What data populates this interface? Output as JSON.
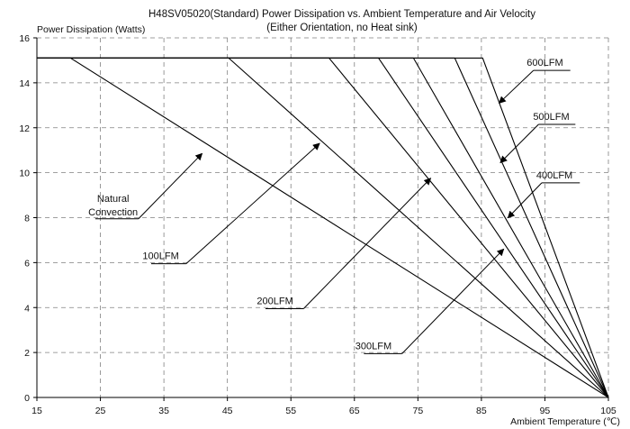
{
  "chart_data": {
    "type": "line",
    "title": "H48SV05020(Standard) Power Dissipation vs. Ambient Temperature and Air Velocity",
    "subtitle": "(Either Orientation, no Heat sink)",
    "ylabel": "Power Dissipation (Watts)",
    "xlabel": "Ambient Temperature (℃)",
    "xlim": [
      15,
      105
    ],
    "ylim": [
      0,
      16
    ],
    "xticks": [
      15,
      25,
      35,
      45,
      55,
      65,
      75,
      85,
      95,
      105
    ],
    "yticks": [
      0,
      2,
      4,
      6,
      8,
      10,
      12,
      14,
      16
    ],
    "grid": true,
    "series": [
      {
        "name": "Natural Convection",
        "x": [
          15,
          20.3,
          105
        ],
        "y": [
          15.1,
          15.1,
          0
        ]
      },
      {
        "name": "100LFM",
        "x": [
          15,
          45.2,
          105
        ],
        "y": [
          15.1,
          15.1,
          0
        ]
      },
      {
        "name": "200LFM",
        "x": [
          15,
          61.0,
          105
        ],
        "y": [
          15.1,
          15.1,
          0
        ]
      },
      {
        "name": "300LFM",
        "x": [
          15,
          68.8,
          105
        ],
        "y": [
          15.1,
          15.1,
          0
        ]
      },
      {
        "name": "400LFM",
        "x": [
          15,
          74.3,
          105
        ],
        "y": [
          15.1,
          15.1,
          0
        ]
      },
      {
        "name": "500LFM",
        "x": [
          15,
          80.8,
          105
        ],
        "y": [
          15.1,
          15.1,
          0
        ]
      },
      {
        "name": "600LFM",
        "x": [
          15,
          85.2,
          105
        ],
        "y": [
          15.1,
          15.1,
          0
        ]
      }
    ],
    "annotations": [
      {
        "label": "Natural",
        "label2": "Convection",
        "text_at": [
          27.0,
          8.7
        ],
        "shelf": [
          [
            24.2,
            7.95
          ],
          [
            31.0,
            7.95
          ]
        ],
        "arrow_to": [
          41.0,
          10.85
        ]
      },
      {
        "label": "100LFM",
        "text_at": [
          34.5,
          6.15
        ],
        "shelf": [
          [
            33.0,
            5.95
          ],
          [
            38.5,
            5.95
          ]
        ],
        "arrow_to": [
          59.5,
          11.3
        ]
      },
      {
        "label": "200LFM",
        "text_at": [
          52.5,
          4.15
        ],
        "shelf": [
          [
            51.0,
            3.95
          ],
          [
            57.0,
            3.95
          ]
        ],
        "arrow_to": [
          77.0,
          9.75
        ]
      },
      {
        "label": "300LFM",
        "text_at": [
          68.0,
          2.15
        ],
        "shelf": [
          [
            66.5,
            1.95
          ],
          [
            72.5,
            1.95
          ]
        ],
        "arrow_to": [
          88.5,
          6.6
        ]
      },
      {
        "label": "400LFM",
        "text_at": [
          96.5,
          9.75
        ],
        "shelf": [
          [
            94.5,
            9.55
          ],
          [
            100.5,
            9.55
          ]
        ],
        "arrow_to": [
          89.2,
          8.0
        ]
      },
      {
        "label": "500LFM",
        "text_at": [
          96.0,
          12.35
        ],
        "shelf": [
          [
            94.0,
            12.15
          ],
          [
            99.8,
            12.15
          ]
        ],
        "arrow_to": [
          88.0,
          10.45
        ]
      },
      {
        "label": "600LFM",
        "text_at": [
          95.0,
          14.75
        ],
        "shelf": [
          [
            93.2,
            14.55
          ],
          [
            99.0,
            14.55
          ]
        ],
        "arrow_to": [
          87.8,
          13.1
        ]
      }
    ]
  }
}
